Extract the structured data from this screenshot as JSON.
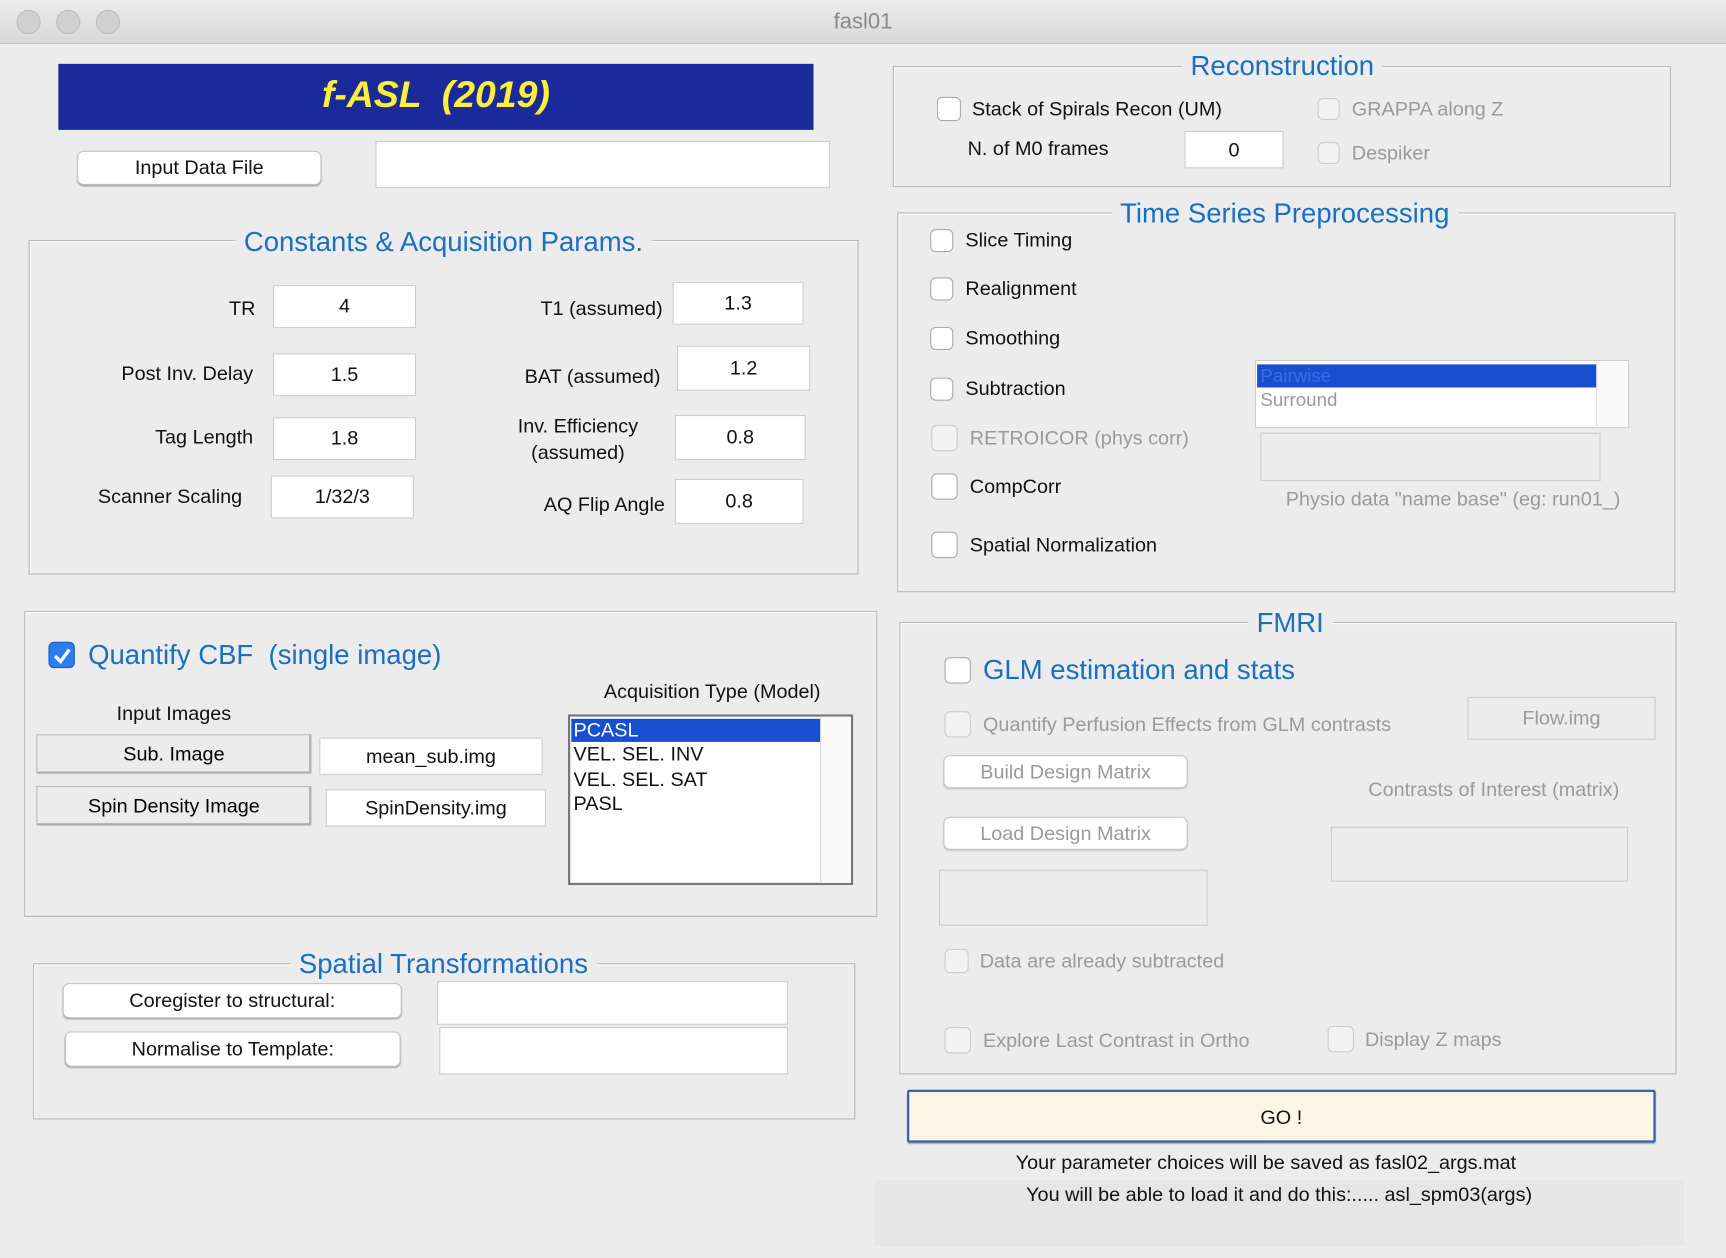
{
  "window": {
    "title": "fasl01"
  },
  "banner": "f-ASL  (2019)",
  "input_file": {
    "button": "Input Data File"
  },
  "constants": {
    "title": "Constants & Acquisition Params.",
    "fields": [
      {
        "label": "TR",
        "value": "4"
      },
      {
        "label": "T1 (assumed)",
        "value": "1.3"
      },
      {
        "label": "Post Inv. Delay",
        "value": "1.5"
      },
      {
        "label": "BAT (assumed)",
        "value": "1.2"
      },
      {
        "label": "Tag Length",
        "value": "1.8"
      },
      {
        "label": "Inv. Efficiency\n(assumed)",
        "value": "0.8"
      },
      {
        "label": "Scanner Scaling",
        "value": "1/32/3"
      },
      {
        "label": "AQ Flip Angle",
        "value": "0.8"
      }
    ]
  },
  "quantify": {
    "label": "Quantify CBF  (single image)",
    "input_images": "Input Images",
    "sub_image": {
      "button": "Sub. Image",
      "value": "mean_sub.img"
    },
    "spin_density": {
      "button": "Spin Density Image",
      "value": "SpinDensity.img"
    },
    "acquisition": {
      "label": "Acquisition Type (Model)",
      "options": [
        "PCASL",
        "VEL. SEL. INV",
        "VEL. SEL. SAT",
        "PASL"
      ]
    }
  },
  "spatial": {
    "title": "Spatial Transformations",
    "buttons": [
      "Coregister to structural:",
      "Normalise to Template:"
    ]
  },
  "reconstruction": {
    "title": "Reconstruction",
    "stack": "Stack of Spirals Recon (UM)",
    "m0_label": "N. of M0 frames",
    "m0_value": "0",
    "grappa": "GRAPPA along Z",
    "despiker": "Despiker"
  },
  "preprocessing": {
    "title": "Time Series Preprocessing",
    "options": [
      "Slice Timing",
      "Realignment",
      "Smoothing",
      "Subtraction",
      "RETROICOR (phys corr)",
      "CompCorr",
      "Spatial Normalization"
    ],
    "list": [
      "Pairwise",
      "Surround"
    ],
    "physio_label": "Physio data \"name base\" (eg: run01_)"
  },
  "fmri": {
    "title": "FMRI",
    "glm": "GLM estimation and stats",
    "quantify": "Quantify Perfusion Effects from GLM contrasts",
    "flow_button": "Flow.img",
    "build": "Build Design Matrix",
    "load": "Load Design Matrix",
    "contrasts_label": "Contrasts of Interest (matrix)",
    "subtracted": "Data are already subtracted",
    "explore": "Explore Last Contrast in Ortho",
    "display_z": "Display Z maps"
  },
  "go": "GO !",
  "notes": [
    "Your parameter choices will be saved as fasl02_args.mat",
    "You will be able to load it and do this:..... asl_spm03(args)"
  ]
}
